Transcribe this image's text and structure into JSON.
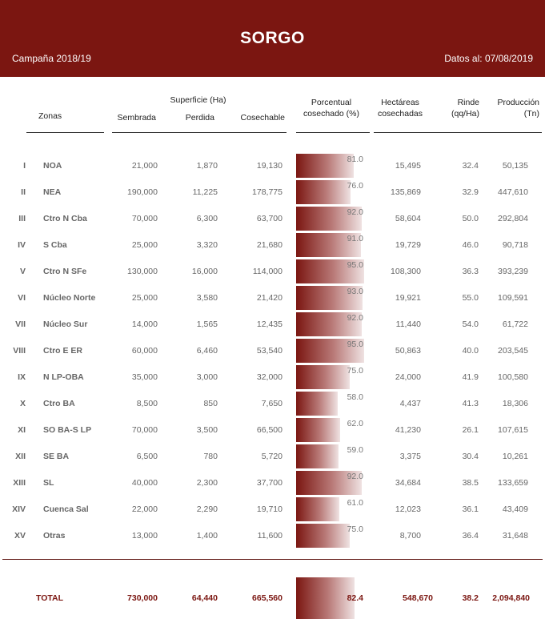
{
  "header": {
    "title": "SORGO",
    "campaign": "Campaña 2018/19",
    "date": "Datos al: 07/08/2019",
    "background_color": "#7b1611"
  },
  "columns": {
    "zonas": "Zonas",
    "superficie_group": "Superficie (Ha)",
    "sembrada": "Sembrada",
    "perdida": "Perdida",
    "cosechable": "Cosechable",
    "porcentual_line1": "Porcentual",
    "porcentual_line2": "cosechado (%)",
    "hectareas_line1": "Hectáreas",
    "hectareas_line2": "cosechadas",
    "rinde_line1": "Rinde",
    "rinde_line2": "(qq/Ha)",
    "produccion_line1": "Producción",
    "produccion_line2": "(Tn)"
  },
  "rows": [
    {
      "roman": "I",
      "zona": "NOA",
      "sembrada": "21,000",
      "perdida": "1,870",
      "cosechable": "19,130",
      "porcentual": "81.0",
      "hectareas": "15,495",
      "rinde": "32.4",
      "produccion": "50,135"
    },
    {
      "roman": "II",
      "zona": "NEA",
      "sembrada": "190,000",
      "perdida": "11,225",
      "cosechable": "178,775",
      "porcentual": "76.0",
      "hectareas": "135,869",
      "rinde": "32.9",
      "produccion": "447,610"
    },
    {
      "roman": "III",
      "zona": "Ctro N Cba",
      "sembrada": "70,000",
      "perdida": "6,300",
      "cosechable": "63,700",
      "porcentual": "92.0",
      "hectareas": "58,604",
      "rinde": "50.0",
      "produccion": "292,804"
    },
    {
      "roman": "IV",
      "zona": "S Cba",
      "sembrada": "25,000",
      "perdida": "3,320",
      "cosechable": "21,680",
      "porcentual": "91.0",
      "hectareas": "19,729",
      "rinde": "46.0",
      "produccion": "90,718"
    },
    {
      "roman": "V",
      "zona": "Ctro N SFe",
      "sembrada": "130,000",
      "perdida": "16,000",
      "cosechable": "114,000",
      "porcentual": "95.0",
      "hectareas": "108,300",
      "rinde": "36.3",
      "produccion": "393,239"
    },
    {
      "roman": "VI",
      "zona": "Núcleo Norte",
      "sembrada": "25,000",
      "perdida": "3,580",
      "cosechable": "21,420",
      "porcentual": "93.0",
      "hectareas": "19,921",
      "rinde": "55.0",
      "produccion": "109,591"
    },
    {
      "roman": "VII",
      "zona": "Núcleo Sur",
      "sembrada": "14,000",
      "perdida": "1,565",
      "cosechable": "12,435",
      "porcentual": "92.0",
      "hectareas": "11,440",
      "rinde": "54.0",
      "produccion": "61,722"
    },
    {
      "roman": "VIII",
      "zona": "Ctro E ER",
      "sembrada": "60,000",
      "perdida": "6,460",
      "cosechable": "53,540",
      "porcentual": "95.0",
      "hectareas": "50,863",
      "rinde": "40.0",
      "produccion": "203,545"
    },
    {
      "roman": "IX",
      "zona": "N LP-OBA",
      "sembrada": "35,000",
      "perdida": "3,000",
      "cosechable": "32,000",
      "porcentual": "75.0",
      "hectareas": "24,000",
      "rinde": "41.9",
      "produccion": "100,580"
    },
    {
      "roman": "X",
      "zona": "Ctro BA",
      "sembrada": "8,500",
      "perdida": "850",
      "cosechable": "7,650",
      "porcentual": "58.0",
      "hectareas": "4,437",
      "rinde": "41.3",
      "produccion": "18,306"
    },
    {
      "roman": "XI",
      "zona": "SO BA-S LP",
      "sembrada": "70,000",
      "perdida": "3,500",
      "cosechable": "66,500",
      "porcentual": "62.0",
      "hectareas": "41,230",
      "rinde": "26.1",
      "produccion": "107,615"
    },
    {
      "roman": "XII",
      "zona": "SE BA",
      "sembrada": "6,500",
      "perdida": "780",
      "cosechable": "5,720",
      "porcentual": "59.0",
      "hectareas": "3,375",
      "rinde": "30.4",
      "produccion": "10,261"
    },
    {
      "roman": "XIII",
      "zona": "SL",
      "sembrada": "40,000",
      "perdida": "2,300",
      "cosechable": "37,700",
      "porcentual": "92.0",
      "hectareas": "34,684",
      "rinde": "38.5",
      "produccion": "133,659"
    },
    {
      "roman": "XIV",
      "zona": "Cuenca Sal",
      "sembrada": "22,000",
      "perdida": "2,290",
      "cosechable": "19,710",
      "porcentual": "61.0",
      "hectareas": "12,023",
      "rinde": "36.1",
      "produccion": "43,409"
    },
    {
      "roman": "XV",
      "zona": "Otras",
      "sembrada": "13,000",
      "perdida": "1,400",
      "cosechable": "11,600",
      "porcentual": "75.0",
      "hectareas": "8,700",
      "rinde": "36.4",
      "produccion": "31,648"
    }
  ],
  "total": {
    "label": "TOTAL",
    "sembrada": "730,000",
    "perdida": "64,440",
    "cosechable": "665,560",
    "porcentual": "82.4",
    "hectareas": "548,670",
    "rinde": "38.2",
    "produccion": "2,094,840"
  }
}
